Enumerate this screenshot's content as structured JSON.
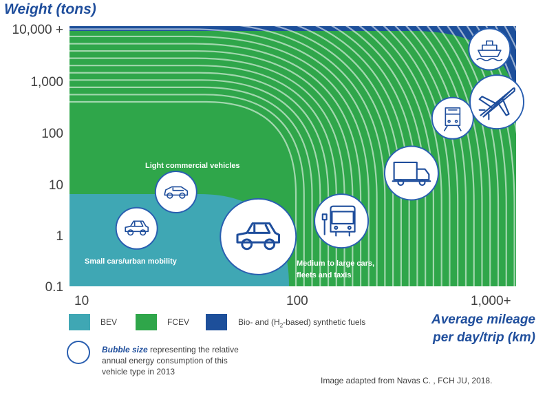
{
  "chart_data": {
    "type": "bubble-region",
    "yaxis": {
      "title": "Weight (tons)",
      "scale": "log",
      "ticks": [
        "10,000 +",
        "1,000",
        "100",
        "10",
        "1",
        "0.1"
      ],
      "range": [
        0.1,
        10000
      ]
    },
    "xaxis": {
      "title_line1": "Average mileage",
      "title_line2": "per day/trip (km)",
      "scale": "log",
      "ticks": [
        "10",
        "100",
        "1,000+"
      ],
      "range": [
        10,
        1000
      ]
    },
    "regions": [
      {
        "name": "BEV",
        "color": "#3fa7b4"
      },
      {
        "name": "FCEV",
        "color": "#2fa64a"
      },
      {
        "name": "Bio- and (H2-based) synthetic fuels",
        "color": "#1d4f9a"
      }
    ],
    "bubbles": [
      {
        "vehicle": "small-car",
        "mileage": 20,
        "weight": 1.3,
        "size": "small"
      },
      {
        "vehicle": "light-commercial",
        "mileage": 30,
        "weight": 6.5,
        "size": "small"
      },
      {
        "vehicle": "medium-large-car",
        "mileage": 70,
        "weight": 0.9,
        "size": "large"
      },
      {
        "vehicle": "bus",
        "mileage": 165,
        "weight": 1.8,
        "size": "medium"
      },
      {
        "vehicle": "truck",
        "mileage": 340,
        "weight": 15,
        "size": "medium"
      },
      {
        "vehicle": "train",
        "mileage": 520,
        "weight": 170,
        "size": "small"
      },
      {
        "vehicle": "airplane",
        "mileage": 820,
        "weight": 350,
        "size": "medium"
      },
      {
        "vehicle": "ship",
        "mileage": 760,
        "weight": 3600,
        "size": "small"
      }
    ],
    "annotations": {
      "small_cars": "Small cars/urban mobility",
      "light_commercial": "Light commercial vehicles",
      "medium_large_1": "Medium to large cars,",
      "medium_large_2": "fleets and taxis"
    }
  },
  "legend": {
    "bev": "BEV",
    "fcev": "FCEV",
    "synthetic_prefix": "Bio- and (H",
    "synthetic_sub": "2",
    "synthetic_suffix": "-based) synthetic fuels"
  },
  "bubble_note": {
    "bold": "Bubble size",
    "rest": " representing the relative annual energy consumption of this vehicle type in 2013"
  },
  "source": "Image adapted from Navas C. , FCH JU, 2018."
}
